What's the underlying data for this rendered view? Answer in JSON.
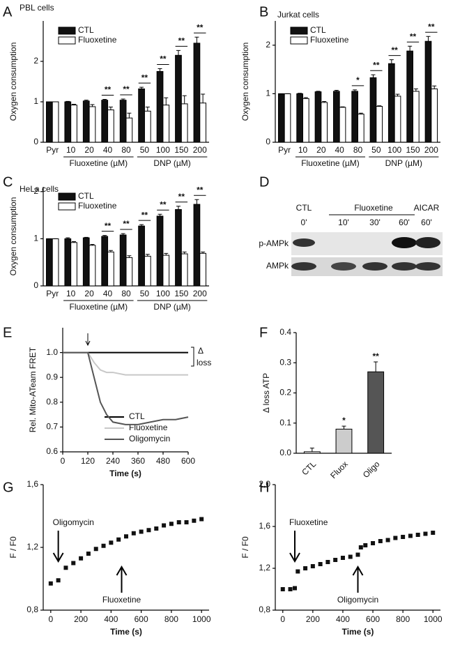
{
  "chart_data": [
    {
      "type": "bar",
      "panel_label": "A",
      "title": "PBL cells",
      "y_label": "Oxygen consumption",
      "categories": [
        "Pyr",
        "10",
        "20",
        "40",
        "80",
        "50",
        "100",
        "150",
        "200"
      ],
      "group_labels": [
        "Fluoxetine (µM)",
        "DNP (µM)"
      ],
      "series": [
        {
          "name": "CTL",
          "color": "#111111",
          "values": [
            1,
            1,
            1.02,
            1.04,
            1.04,
            1.32,
            1.75,
            2.15,
            2.45
          ],
          "errors": [
            0,
            0.01,
            0.02,
            0.02,
            0.03,
            0.04,
            0.07,
            0.12,
            0.15
          ]
        },
        {
          "name": "Fluoxetine",
          "color": "#ffffff",
          "values": [
            1,
            0.92,
            0.88,
            0.8,
            0.6,
            0.77,
            0.92,
            0.95,
            0.97
          ],
          "errors": [
            0,
            0.02,
            0.05,
            0.07,
            0.12,
            0.1,
            0.18,
            0.2,
            0.22
          ]
        }
      ],
      "significance": [
        null,
        null,
        null,
        "**",
        "**",
        "**",
        "**",
        "**",
        "**"
      ],
      "ylim": [
        0,
        3
      ],
      "yticks": [
        0,
        1,
        2
      ]
    },
    {
      "type": "bar",
      "panel_label": "B",
      "title": "Jurkat cells",
      "y_label": "Oxygen consumption",
      "categories": [
        "Pyr",
        "10",
        "20",
        "40",
        "80",
        "50",
        "100",
        "150",
        "200"
      ],
      "group_labels": [
        "Fluoxetine (µM)",
        "DNP (µM)"
      ],
      "series": [
        {
          "name": "CTL",
          "color": "#111111",
          "values": [
            1,
            1,
            1.04,
            1.05,
            1.05,
            1.33,
            1.62,
            1.88,
            2.08
          ],
          "errors": [
            0,
            0.01,
            0.01,
            0.02,
            0.03,
            0.06,
            0.08,
            0.1,
            0.1
          ]
        },
        {
          "name": "Fluoxetine",
          "color": "#ffffff",
          "values": [
            1,
            0.9,
            0.82,
            0.72,
            0.58,
            0.74,
            0.95,
            1.05,
            1.1
          ],
          "errors": [
            0,
            0.02,
            0.02,
            0.01,
            0.02,
            0.01,
            0.04,
            0.05,
            0.06
          ]
        }
      ],
      "significance": [
        null,
        null,
        null,
        null,
        "*",
        "**",
        "**",
        "**",
        "**"
      ],
      "ylim": [
        0,
        2.5
      ],
      "yticks": [
        0,
        1,
        2
      ]
    },
    {
      "type": "bar",
      "panel_label": "C",
      "title": "HeLa cells",
      "y_label": "Oxygen consumption",
      "categories": [
        "Pyr",
        "10",
        "20",
        "40",
        "80",
        "50",
        "100",
        "150",
        "200"
      ],
      "group_labels": [
        "Fluoxetine (µM)",
        "DNP (µM)"
      ],
      "series": [
        {
          "name": "CTL",
          "color": "#111111",
          "values": [
            1,
            1,
            1.02,
            1.05,
            1.08,
            1.27,
            1.48,
            1.62,
            1.73
          ],
          "errors": [
            0,
            0.02,
            0.01,
            0.02,
            0.03,
            0.03,
            0.04,
            0.07,
            0.1
          ]
        },
        {
          "name": "Fluoxetine",
          "color": "#ffffff",
          "values": [
            1,
            0.92,
            0.86,
            0.72,
            0.6,
            0.63,
            0.65,
            0.68,
            0.69
          ],
          "errors": [
            0,
            0.02,
            0.02,
            0.03,
            0.04,
            0.04,
            0.04,
            0.04,
            0.03
          ]
        }
      ],
      "significance": [
        null,
        null,
        null,
        "**",
        "**",
        "**",
        "**",
        "**",
        "**"
      ],
      "ylim": [
        0,
        2.1
      ],
      "yticks": [
        0,
        1,
        2
      ]
    },
    {
      "type": "line",
      "panel_label": "E",
      "x_label": "Time (s)",
      "y_label": "Rel. Mito-ATeam FRET",
      "x": [
        0,
        60,
        120,
        150,
        180,
        210,
        240,
        300,
        360,
        420,
        480,
        540,
        600
      ],
      "series": [
        {
          "name": "CTL",
          "color": "#000000",
          "values": [
            1,
            1,
            1,
            1,
            1,
            1,
            1,
            1,
            1,
            1,
            1,
            1,
            1
          ]
        },
        {
          "name": "Fluoxetine",
          "color": "#c8c8c8",
          "values": [
            1,
            1,
            1,
            0.96,
            0.93,
            0.92,
            0.92,
            0.91,
            0.91,
            0.91,
            0.91,
            0.91,
            0.91
          ]
        },
        {
          "name": "Oligomycin",
          "color": "#555555",
          "values": [
            1,
            1,
            1,
            0.9,
            0.8,
            0.75,
            0.72,
            0.71,
            0.71,
            0.72,
            0.73,
            0.73,
            0.74
          ]
        }
      ],
      "arrow_x": 120,
      "annotations": [
        "Δ",
        "loss"
      ],
      "legend": "lower right",
      "xlim": [
        0,
        600
      ],
      "xticks": [
        0,
        120,
        240,
        360,
        480,
        600
      ],
      "ylim": [
        0.6,
        1.1
      ],
      "yticks": [
        0.6,
        0.7,
        0.8,
        0.9,
        {
          "value": 1,
          "label": "1.0"
        }
      ]
    },
    {
      "type": "bar",
      "panel_label": "F",
      "y_label": "Δ loss ATP",
      "categories": [
        "CTL",
        "Fluox",
        "Oligo"
      ],
      "values": [
        0.005,
        0.08,
        0.27
      ],
      "errors": [
        0.012,
        0.01,
        0.033
      ],
      "colors": [
        "#ffffff",
        "#cccccc",
        "#555555"
      ],
      "significance": [
        null,
        "*",
        "**"
      ],
      "ylim": [
        0,
        0.4
      ],
      "yticks": [
        {
          "value": 0,
          "label": "0.0"
        },
        0.1,
        0.2,
        0.3,
        0.4
      ]
    },
    {
      "type": "scatter",
      "panel_label": "G",
      "x_label": "Time (s)",
      "y_label": "F / F0",
      "color": "#111111",
      "x": [
        0,
        50,
        100,
        150,
        200,
        250,
        300,
        350,
        400,
        450,
        500,
        550,
        600,
        650,
        700,
        750,
        800,
        850,
        900,
        950,
        1000
      ],
      "values": [
        0.97,
        0.99,
        1.07,
        1.1,
        1.13,
        1.16,
        1.19,
        1.21,
        1.23,
        1.25,
        1.27,
        1.29,
        1.3,
        1.31,
        1.32,
        1.34,
        1.35,
        1.36,
        1.36,
        1.37,
        1.38
      ],
      "arrows": [
        {
          "label": "Oligomycin",
          "x": 50,
          "direction": "down"
        },
        {
          "label": "Fluoxetine",
          "x": 470,
          "direction": "up"
        }
      ],
      "xlim": [
        -50,
        1050
      ],
      "xticks": [
        0,
        200,
        400,
        600,
        800,
        1000
      ],
      "ylim": [
        0.8,
        1.6
      ],
      "yticks": [
        {
          "value": 0.8,
          "label": "0,8"
        },
        {
          "value": 1.2,
          "label": "1,2"
        },
        {
          "value": 1.6,
          "label": "1,6"
        }
      ]
    },
    {
      "type": "scatter",
      "panel_label": "H",
      "x_label": "Time (s)",
      "y_label": "F / F0",
      "color": "#111111",
      "x": [
        0,
        50,
        80,
        100,
        150,
        200,
        250,
        300,
        350,
        400,
        450,
        500,
        520,
        550,
        600,
        650,
        700,
        750,
        800,
        850,
        900,
        950,
        1000
      ],
      "values": [
        1,
        1,
        1.01,
        1.17,
        1.2,
        1.22,
        1.24,
        1.26,
        1.28,
        1.3,
        1.31,
        1.33,
        1.4,
        1.42,
        1.44,
        1.46,
        1.47,
        1.49,
        1.5,
        1.51,
        1.52,
        1.53,
        1.54
      ],
      "arrows": [
        {
          "label": "Fluoxetine",
          "x": 80,
          "direction": "down"
        },
        {
          "label": "Oligomycin",
          "x": 500,
          "direction": "up"
        }
      ],
      "xlim": [
        -50,
        1050
      ],
      "xticks": [
        0,
        200,
        400,
        600,
        800,
        1000
      ],
      "ylim": [
        0.8,
        2.0
      ],
      "yticks": [
        {
          "value": 0.8,
          "label": "0,8"
        },
        {
          "value": 1.2,
          "label": "1,2"
        },
        {
          "value": 1.6,
          "label": "1,6"
        },
        {
          "value": 2.0,
          "label": "2,0"
        }
      ]
    }
  ],
  "blot": {
    "panel_label": "D",
    "treatment_labels": [
      "CTL",
      "Fluoxetine",
      "AICAR"
    ],
    "time_labels": [
      "0'",
      "10'",
      "30'",
      "60'",
      "60'"
    ],
    "row_labels": [
      "p-AMPk",
      "AMPk"
    ]
  }
}
